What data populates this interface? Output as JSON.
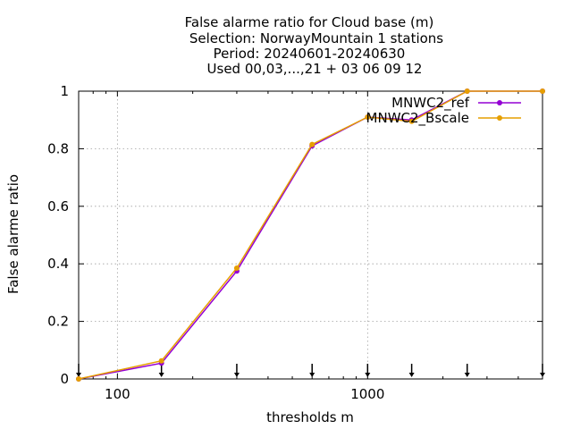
{
  "chart_data": {
    "type": "line",
    "title_lines": [
      "False alarme ratio  for Cloud base (m)",
      "Selection: NorwayMountain      1 stations",
      "Period: 20240601-20240630",
      "Used 00,03,...,21 + 03 06 09 12"
    ],
    "xlabel": "thresholds m",
    "ylabel": "False alarme ratio",
    "x_scale": "log",
    "xlim": [
      70,
      5000
    ],
    "ylim": [
      0,
      1
    ],
    "x_ticks": [
      100,
      1000
    ],
    "x_tick_labels": [
      "100",
      "1000"
    ],
    "y_ticks": [
      0,
      0.2,
      0.4,
      0.6,
      0.8,
      1
    ],
    "y_tick_labels": [
      "0",
      "0.2",
      "0.4",
      "0.6",
      "0.8",
      "1"
    ],
    "grid": true,
    "legend_position": "top-right",
    "threshold_markers": [
      70,
      150,
      300,
      600,
      1000,
      1500,
      2500,
      5000
    ],
    "x": [
      70,
      150,
      300,
      600,
      1000,
      1500,
      2500,
      5000
    ],
    "series": [
      {
        "name": "MNWC2_ref",
        "color": "#9400d3",
        "values": [
          0.0,
          0.055,
          0.375,
          0.81,
          0.91,
          0.9,
          1.0,
          1.0
        ]
      },
      {
        "name": "MNWC2_Bscale",
        "color": "#e69f00",
        "values": [
          0.0,
          0.063,
          0.385,
          0.815,
          0.91,
          0.895,
          1.0,
          1.0
        ]
      }
    ]
  }
}
